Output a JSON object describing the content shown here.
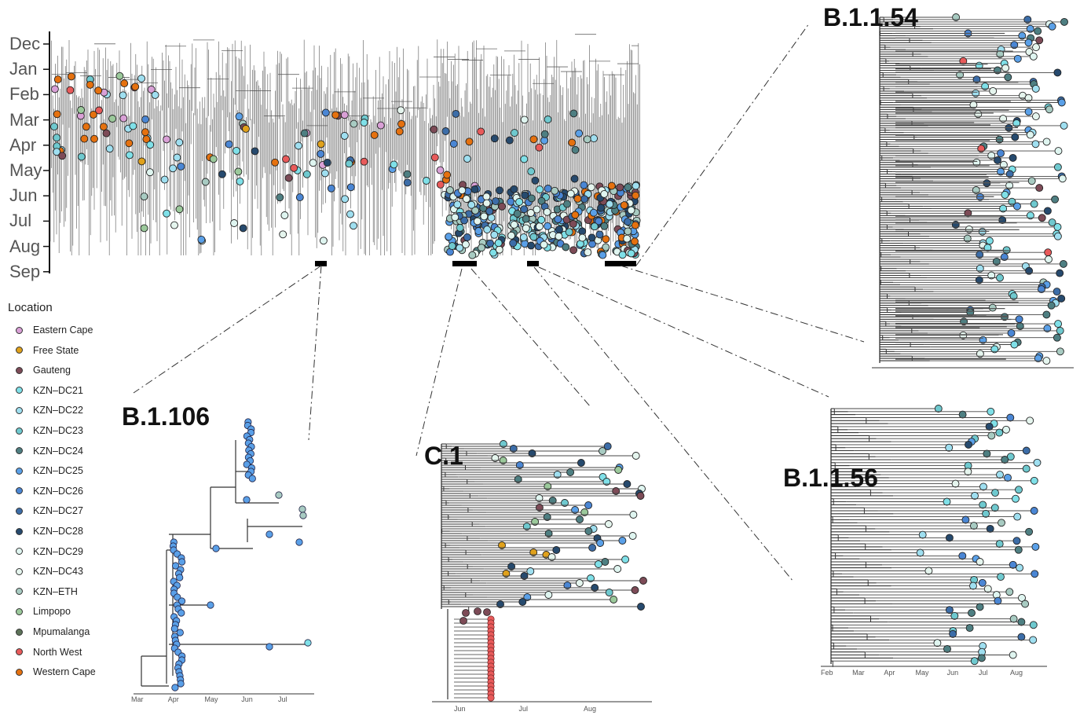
{
  "main_tree": {
    "month_labels": [
      "Dec",
      "Jan",
      "Feb",
      "Mar",
      "Apr",
      "May",
      "Jun",
      "Jul",
      "Aug",
      "Sep"
    ]
  },
  "legend": {
    "title": "Location",
    "items": [
      {
        "label": "Eastern Cape",
        "color": "#d9a0d6"
      },
      {
        "label": "Free State",
        "color": "#e0a11b"
      },
      {
        "label": "Gauteng",
        "color": "#7d4b57"
      },
      {
        "label": "KZN–DC21",
        "color": "#7fe0e8"
      },
      {
        "label": "KZN–DC22",
        "color": "#9fdff0"
      },
      {
        "label": "KZN–DC23",
        "color": "#6fc9cf"
      },
      {
        "label": "KZN–DC24",
        "color": "#4e7f82"
      },
      {
        "label": "KZN–DC25",
        "color": "#5aa0e8"
      },
      {
        "label": "KZN–DC26",
        "color": "#4a86d4"
      },
      {
        "label": "KZN–DC27",
        "color": "#3c6da8"
      },
      {
        "label": "KZN–DC28",
        "color": "#264a6e"
      },
      {
        "label": "KZN–DC29",
        "color": "#dff5f0"
      },
      {
        "label": "KZN–DC43",
        "color": "#e5f5ee"
      },
      {
        "label": "KZN–ETH",
        "color": "#a8cbc2"
      },
      {
        "label": "Limpopo",
        "color": "#9bc99b"
      },
      {
        "label": "Mpumalanga",
        "color": "#5d7359"
      },
      {
        "label": "North West",
        "color": "#e85a5a"
      },
      {
        "label": "Western Cape",
        "color": "#e5710f"
      }
    ]
  },
  "clades": {
    "b1154": {
      "name": "B.1.1.54"
    },
    "b1106": {
      "name": "B.1.106",
      "axis": [
        "Mar",
        "Apr",
        "May",
        "Jun",
        "Jul"
      ]
    },
    "c1": {
      "name": "C.1",
      "axis": [
        "Jun",
        "Jul",
        "Aug"
      ]
    },
    "b1156": {
      "name": "B.1.1.56",
      "axis": [
        "Feb",
        "Mar",
        "Apr",
        "May",
        "Jun",
        "Jul",
        "Aug"
      ]
    }
  }
}
